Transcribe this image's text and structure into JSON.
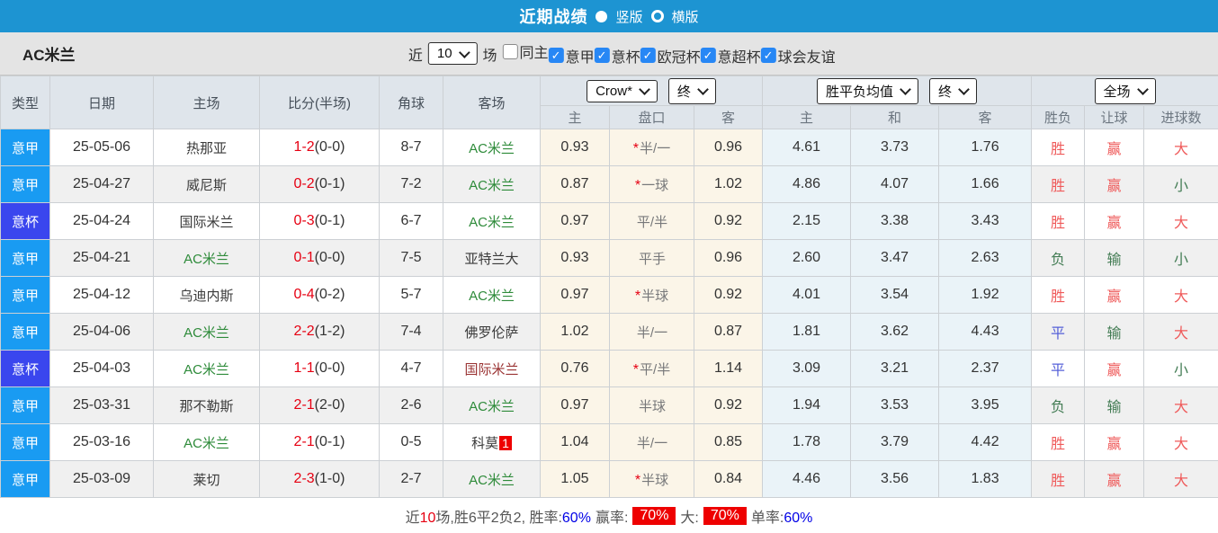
{
  "topbar": {
    "title": "近期战绩",
    "vertical_label": "竖版",
    "horizontal_label": "横版"
  },
  "filter": {
    "team": "AC米兰",
    "near_label": "近",
    "count_value": "10",
    "games_label": "场",
    "checkboxes": [
      {
        "label": "同主",
        "checked": false
      },
      {
        "label": "意甲",
        "checked": true
      },
      {
        "label": "意杯",
        "checked": true
      },
      {
        "label": "欧冠杯",
        "checked": true
      },
      {
        "label": "意超杯",
        "checked": true
      },
      {
        "label": "球会友谊",
        "checked": true
      }
    ]
  },
  "table": {
    "col_headers": [
      "类型",
      "日期",
      "主场",
      "比分(半场)",
      "角球",
      "客场"
    ],
    "selects": {
      "company": "Crow*",
      "company_time": "终",
      "avg": "胜平负均值",
      "avg_time": "终",
      "scope": "全场"
    },
    "sub_headers": [
      "主",
      "盘口",
      "客",
      "主",
      "和",
      "客",
      "胜负",
      "让球",
      "进球数"
    ],
    "rows": [
      {
        "type": "意甲",
        "type_style": "a",
        "date": "25-05-06",
        "home": "热那亚",
        "home_style": "dark",
        "ft": "1-2",
        "ht": "(0-0)",
        "corners": "8-7",
        "away": "AC米兰",
        "away_style": "green",
        "badge": "",
        "ah_home": "0.93",
        "star": "*",
        "line": "半/一",
        "ah_away": "0.96",
        "x_home": "4.61",
        "x_draw": "3.73",
        "x_away": "1.76",
        "wdl": "胜",
        "wdl_style": "red",
        "hc": "赢",
        "hc_style": "red",
        "goal": "大",
        "goal_style": "red"
      },
      {
        "type": "意甲",
        "type_style": "a",
        "date": "25-04-27",
        "home": "威尼斯",
        "home_style": "dark",
        "ft": "0-2",
        "ht": "(0-1)",
        "corners": "7-2",
        "away": "AC米兰",
        "away_style": "green",
        "badge": "",
        "ah_home": "0.87",
        "star": "*",
        "line": "一球",
        "ah_away": "1.02",
        "x_home": "4.86",
        "x_draw": "4.07",
        "x_away": "1.66",
        "wdl": "胜",
        "wdl_style": "red",
        "hc": "赢",
        "hc_style": "red",
        "goal": "小",
        "goal_style": "green"
      },
      {
        "type": "意杯",
        "type_style": "cup",
        "date": "25-04-24",
        "home": "国际米兰",
        "home_style": "dark",
        "ft": "0-3",
        "ht": "(0-1)",
        "corners": "6-7",
        "away": "AC米兰",
        "away_style": "green",
        "badge": "",
        "ah_home": "0.97",
        "star": "",
        "line": "平/半",
        "ah_away": "0.92",
        "x_home": "2.15",
        "x_draw": "3.38",
        "x_away": "3.43",
        "wdl": "胜",
        "wdl_style": "red",
        "hc": "赢",
        "hc_style": "red",
        "goal": "大",
        "goal_style": "red"
      },
      {
        "type": "意甲",
        "type_style": "a",
        "date": "25-04-21",
        "home": "AC米兰",
        "home_style": "green",
        "ft": "0-1",
        "ht": "(0-0)",
        "corners": "7-5",
        "away": "亚特兰大",
        "away_style": "dark",
        "badge": "",
        "ah_home": "0.93",
        "star": "",
        "line": "平手",
        "ah_away": "0.96",
        "x_home": "2.60",
        "x_draw": "3.47",
        "x_away": "2.63",
        "wdl": "负",
        "wdl_style": "green",
        "hc": "输",
        "hc_style": "green",
        "goal": "小",
        "goal_style": "green"
      },
      {
        "type": "意甲",
        "type_style": "a",
        "date": "25-04-12",
        "home": "乌迪内斯",
        "home_style": "dark",
        "ft": "0-4",
        "ht": "(0-2)",
        "corners": "5-7",
        "away": "AC米兰",
        "away_style": "green",
        "badge": "",
        "ah_home": "0.97",
        "star": "*",
        "line": "半球",
        "ah_away": "0.92",
        "x_home": "4.01",
        "x_draw": "3.54",
        "x_away": "1.92",
        "wdl": "胜",
        "wdl_style": "red",
        "hc": "赢",
        "hc_style": "red",
        "goal": "大",
        "goal_style": "red"
      },
      {
        "type": "意甲",
        "type_style": "a",
        "date": "25-04-06",
        "home": "AC米兰",
        "home_style": "green",
        "ft": "2-2",
        "ht": "(1-2)",
        "corners": "7-4",
        "away": "佛罗伦萨",
        "away_style": "dark",
        "badge": "",
        "ah_home": "1.02",
        "star": "",
        "line": "半/一",
        "ah_away": "0.87",
        "x_home": "1.81",
        "x_draw": "3.62",
        "x_away": "4.43",
        "wdl": "平",
        "wdl_style": "blue",
        "hc": "输",
        "hc_style": "green",
        "goal": "大",
        "goal_style": "red"
      },
      {
        "type": "意杯",
        "type_style": "cup",
        "date": "25-04-03",
        "home": "AC米兰",
        "home_style": "green",
        "ft": "1-1",
        "ht": "(0-0)",
        "corners": "4-7",
        "away": "国际米兰",
        "away_style": "darkred",
        "badge": "",
        "ah_home": "0.76",
        "star": "*",
        "line": "平/半",
        "ah_away": "1.14",
        "x_home": "3.09",
        "x_draw": "3.21",
        "x_away": "2.37",
        "wdl": "平",
        "wdl_style": "blue",
        "hc": "赢",
        "hc_style": "red",
        "goal": "小",
        "goal_style": "green"
      },
      {
        "type": "意甲",
        "type_style": "a",
        "date": "25-03-31",
        "home": "那不勒斯",
        "home_style": "dark",
        "ft": "2-1",
        "ht": "(2-0)",
        "corners": "2-6",
        "away": "AC米兰",
        "away_style": "green",
        "badge": "",
        "ah_home": "0.97",
        "star": "",
        "line": "半球",
        "ah_away": "0.92",
        "x_home": "1.94",
        "x_draw": "3.53",
        "x_away": "3.95",
        "wdl": "负",
        "wdl_style": "green",
        "hc": "输",
        "hc_style": "green",
        "goal": "大",
        "goal_style": "red"
      },
      {
        "type": "意甲",
        "type_style": "a",
        "date": "25-03-16",
        "home": "AC米兰",
        "home_style": "green",
        "ft": "2-1",
        "ht": "(0-1)",
        "corners": "0-5",
        "away": "科莫",
        "away_style": "dark",
        "badge": "1",
        "ah_home": "1.04",
        "star": "",
        "line": "半/一",
        "ah_away": "0.85",
        "x_home": "1.78",
        "x_draw": "3.79",
        "x_away": "4.42",
        "wdl": "胜",
        "wdl_style": "red",
        "hc": "赢",
        "hc_style": "red",
        "goal": "大",
        "goal_style": "red"
      },
      {
        "type": "意甲",
        "type_style": "a",
        "date": "25-03-09",
        "home": "莱切",
        "home_style": "dark",
        "ft": "2-3",
        "ht": "(1-0)",
        "corners": "2-7",
        "away": "AC米兰",
        "away_style": "green",
        "badge": "",
        "ah_home": "1.05",
        "star": "*",
        "line": "半球",
        "ah_away": "0.84",
        "x_home": "4.46",
        "x_draw": "3.56",
        "x_away": "1.83",
        "wdl": "胜",
        "wdl_style": "red",
        "hc": "赢",
        "hc_style": "red",
        "goal": "大",
        "goal_style": "red"
      }
    ]
  },
  "summary": {
    "prefix": "近",
    "count": "10",
    "mid": "场,胜6平2负2, 胜率:",
    "win_rate": "60%",
    "handicap_label": "赢率:",
    "handicap_rate": "70%",
    "big_label": "大:",
    "big_rate": "70%",
    "single_label": "单率:",
    "single_rate": "60%"
  },
  "colors": {
    "topbar_blue": "#1d94d2",
    "serie_a_blue": "#199bf2",
    "coppa_indigo": "#3a46ee",
    "score_red": "#e60012",
    "team_green": "#2e8b3a",
    "team_darkred": "#9a3333",
    "result_red": "#ef5a5a",
    "result_green": "#447d55",
    "result_blue": "#5560d8",
    "badge_red": "#ee0000",
    "percent_blue": "#0000e6",
    "checkbox_blue": "#2787f5"
  }
}
